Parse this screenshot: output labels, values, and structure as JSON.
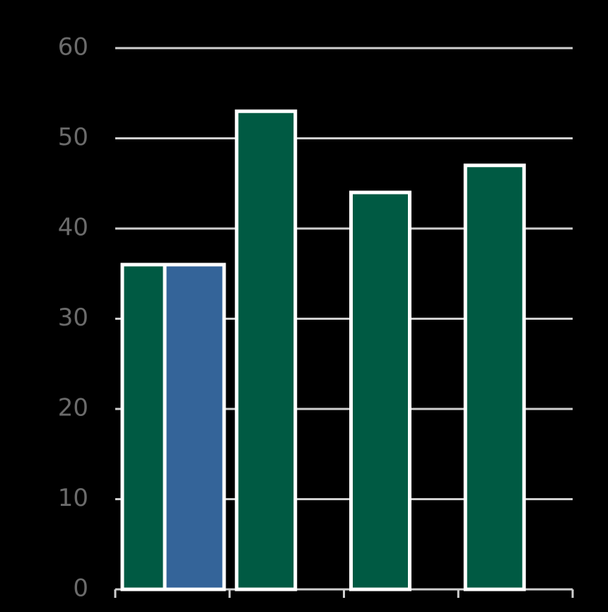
{
  "chart_data": {
    "type": "bar",
    "categories": [
      null,
      null,
      null,
      null
    ],
    "series": [
      {
        "color": "#005a43",
        "values": [
          36,
          53,
          44,
          47
        ]
      },
      {
        "color": "#346499",
        "values": [
          36,
          null,
          null,
          null
        ]
      }
    ],
    "ylim": [
      0,
      60
    ],
    "yticks": [
      0,
      10,
      20,
      30,
      40,
      50,
      60
    ],
    "grid": true
  }
}
